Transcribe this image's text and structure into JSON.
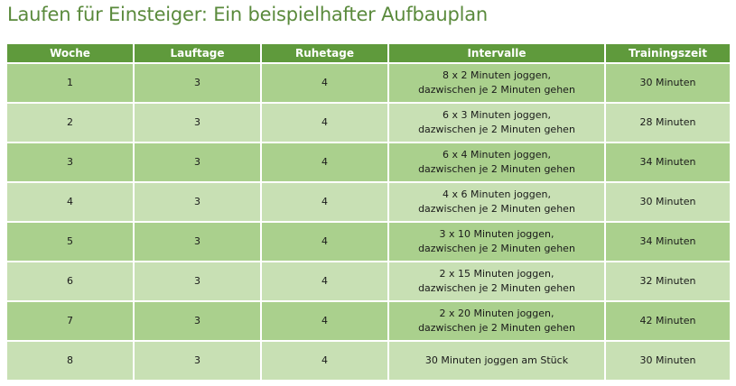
{
  "title": "Laufen für Einsteiger: Ein beispielhafter Aufbauplan",
  "table": {
    "headers": [
      "Woche",
      "Lauftage",
      "Ruhetage",
      "Intervalle",
      "Trainingszeit"
    ],
    "rows": [
      {
        "woche": "1",
        "lauftage": "3",
        "ruhetage": "4",
        "intervalle_line1": "8 x 2 Minuten joggen,",
        "intervalle_line2": "dazwischen je 2 Minuten gehen",
        "zeit": "30 Minuten"
      },
      {
        "woche": "2",
        "lauftage": "3",
        "ruhetage": "4",
        "intervalle_line1": "6 x 3 Minuten joggen,",
        "intervalle_line2": "dazwischen je 2 Minuten gehen",
        "zeit": "28 Minuten"
      },
      {
        "woche": "3",
        "lauftage": "3",
        "ruhetage": "4",
        "intervalle_line1": "6 x 4 Minuten joggen,",
        "intervalle_line2": "dazwischen je 2 Minuten gehen",
        "zeit": "34 Minuten"
      },
      {
        "woche": "4",
        "lauftage": "3",
        "ruhetage": "4",
        "intervalle_line1": "4 x 6 Minuten joggen,",
        "intervalle_line2": "dazwischen je 2 Minuten gehen",
        "zeit": "30 Minuten"
      },
      {
        "woche": "5",
        "lauftage": "3",
        "ruhetage": "4",
        "intervalle_line1": "3 x 10 Minuten joggen,",
        "intervalle_line2": "dazwischen je 2 Minuten gehen",
        "zeit": "34 Minuten"
      },
      {
        "woche": "6",
        "lauftage": "3",
        "ruhetage": "4",
        "intervalle_line1": "2 x 15 Minuten joggen,",
        "intervalle_line2": "dazwischen je 2 Minuten gehen",
        "zeit": "32 Minuten"
      },
      {
        "woche": "7",
        "lauftage": "3",
        "ruhetage": "4",
        "intervalle_line1": "2 x 20 Minuten joggen,",
        "intervalle_line2": "dazwischen je 2 Minuten gehen",
        "zeit": "42 Minuten"
      },
      {
        "woche": "8",
        "lauftage": "3",
        "ruhetage": "4",
        "intervalle_line1": "30 Minuten joggen am Stück",
        "intervalle_line2": "",
        "zeit": "30 Minuten"
      }
    ]
  },
  "colors": {
    "title": "#5a8a3c",
    "header_bg": "#5f9a3c",
    "row_dark": "#aad08d",
    "row_light": "#c8e0b4"
  }
}
